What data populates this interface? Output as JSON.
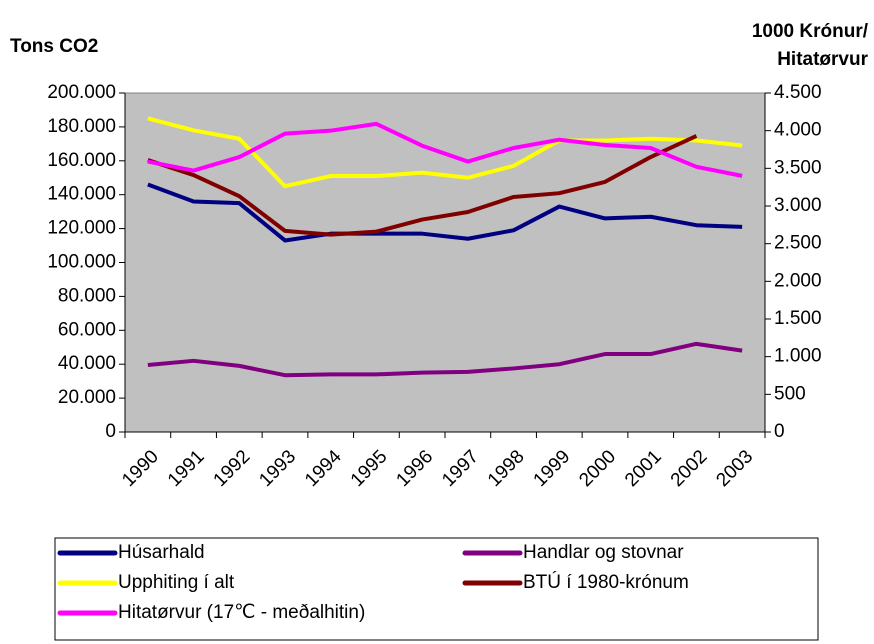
{
  "chart_data": {
    "type": "line",
    "left_axis_title": "Tons CO2",
    "right_axis_title": [
      "1000 Krónur/",
      "Hitatørvur"
    ],
    "categories": [
      "1990",
      "1991",
      "1992",
      "1993",
      "1994",
      "1995",
      "1996",
      "1997",
      "1998",
      "1999",
      "2000",
      "2001",
      "2002",
      "2003"
    ],
    "ylim": [
      0,
      200000
    ],
    "yticks": [
      0,
      {
        "value": 20000,
        "label": "20.000"
      },
      {
        "value": 40000,
        "label": "40.000"
      },
      {
        "value": 60000,
        "label": "60.000"
      },
      {
        "value": 80000,
        "label": "80.000"
      },
      {
        "value": 100000,
        "label": "100.000"
      },
      {
        "value": 120000,
        "label": "120.000"
      },
      {
        "value": 140000,
        "label": "140.000"
      },
      {
        "value": 160000,
        "label": "160.000"
      },
      {
        "value": 180000,
        "label": "180.000"
      },
      {
        "value": 200000,
        "label": "200.000"
      }
    ],
    "y2lim": [
      0,
      4500
    ],
    "y2ticks": [
      0,
      500,
      {
        "value": 1000,
        "label": "1.000"
      },
      {
        "value": 1500,
        "label": "1.500"
      },
      {
        "value": 2000,
        "label": "2.000"
      },
      {
        "value": 2500,
        "label": "2.500"
      },
      {
        "value": 3000,
        "label": "3.000"
      },
      {
        "value": 3500,
        "label": "3.500"
      },
      {
        "value": 4000,
        "label": "4.000"
      },
      {
        "value": 4500,
        "label": "4.500"
      }
    ],
    "series": [
      {
        "name": "Húsarhald",
        "color": "#000080",
        "values": [
          146000,
          136000,
          135000,
          113000,
          117000,
          117000,
          117000,
          114000,
          119000,
          133000,
          126000,
          127000,
          122000,
          121000
        ]
      },
      {
        "name": "Handlar og stovnar",
        "color": "#800080",
        "values": [
          39500,
          42000,
          39000,
          33500,
          34000,
          34000,
          35000,
          35500,
          37500,
          40000,
          46000,
          46000,
          52000,
          48000
        ]
      },
      {
        "name": "Upphiting í alt",
        "color": "#ffff00",
        "values": [
          185000,
          178000,
          173000,
          145000,
          151000,
          151000,
          153000,
          150000,
          157000,
          172000,
          172000,
          173000,
          172000,
          169000
        ]
      },
      {
        "name": "BTÚ í 1980-krónum",
        "color": "#800000",
        "axis": "y2",
        "values": [
          3610,
          3410,
          3130,
          2670,
          2620,
          2660,
          2820,
          2920,
          3120,
          3170,
          3320,
          3650,
          3930,
          null
        ]
      },
      {
        "name": "Hitatørvur (17℃ - meðalhitin)",
        "color": "#ff00ff",
        "axis": "y2",
        "values": [
          3590,
          3470,
          3650,
          3960,
          4000,
          4090,
          3800,
          3590,
          3770,
          3880,
          3810,
          3770,
          3520,
          3400
        ]
      }
    ],
    "plot_background": "#c0c0c0"
  }
}
